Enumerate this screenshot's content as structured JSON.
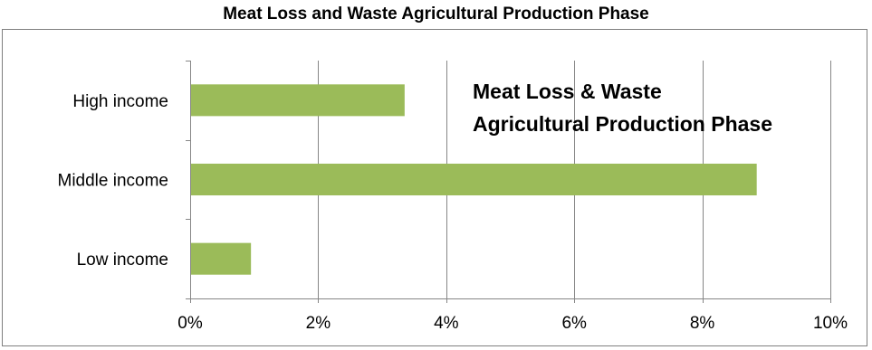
{
  "chart_data": {
    "type": "bar",
    "orientation": "horizontal",
    "title": "Meat Loss and Waste Agricultural Production Phase",
    "annotation_lines": [
      "Meat Loss & Waste",
      "Agricultural Production Phase"
    ],
    "categories": [
      "High income",
      "Middle income",
      "Low income"
    ],
    "values": [
      3.35,
      8.85,
      0.95
    ],
    "value_unit": "%",
    "xlim": [
      0,
      10
    ],
    "xticks": [
      "0%",
      "2%",
      "4%",
      "6%",
      "8%",
      "10%"
    ],
    "xlabel": "",
    "ylabel": "",
    "grid": "vertical",
    "legend": "none",
    "bar_color": "#9bbb59",
    "grid_color": "#868686"
  }
}
